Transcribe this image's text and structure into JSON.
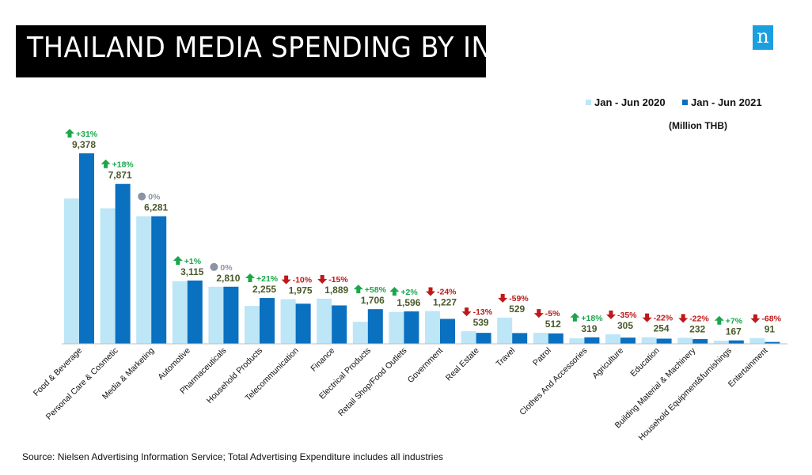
{
  "header": {
    "title": "THAILAND MEDIA SPENDING BY INDUSTRY",
    "logo_letter": "n"
  },
  "footer": {
    "source": "Source: Nielsen Advertising Information Service; Total Advertising Expenditure includes all industries"
  },
  "colors": {
    "series_2020": "#bde6f7",
    "series_2021": "#0a70c0",
    "up": "#18a84a",
    "down": "#c01818",
    "flat": "#8a94a6",
    "value_text": "#4a5a2a",
    "title_bg": "#000000",
    "logo_bg": "#1aa0e0"
  },
  "chart_data": {
    "type": "bar",
    "title": "THAILAND MEDIA SPENDING BY INDUSTRY",
    "unit": "(Million THB)",
    "legend_position": "top-right",
    "grid": false,
    "ylim": [
      0,
      9378
    ],
    "categories": [
      "Food & Beverage",
      "Personal Care & Cosmetic",
      "Media & Marketing",
      "Automotive",
      "Pharmaceuticals",
      "Household Products",
      "Telecommunication",
      "Finance",
      "Electrical Products",
      "Retail Shop/Food Outlets",
      "Government",
      "Real Estate",
      "Travel",
      "Patrol",
      "Clothes And Accessories",
      "Agriculture",
      "Education",
      "Building Material & Machinery",
      "Household Equipment&furnishings",
      "Entertainment"
    ],
    "series": [
      {
        "name": "Jan - Jun 2020",
        "values": [
          7150,
          6670,
          6280,
          3085,
          2810,
          1865,
          2195,
          2220,
          1080,
          1565,
          1615,
          620,
          1290,
          540,
          270,
          470,
          325,
          297,
          156,
          284
        ]
      },
      {
        "name": "Jan - Jun 2021",
        "values": [
          9378,
          7871,
          6281,
          3115,
          2810,
          2255,
          1975,
          1889,
          1706,
          1596,
          1227,
          539,
          529,
          512,
          319,
          305,
          254,
          232,
          167,
          91
        ]
      }
    ],
    "data_labels": [
      "9,378",
      "7,871",
      "6,281",
      "3,115",
      "2,810",
      "2,255",
      "1,975",
      "1,889",
      "1,706",
      "1,596",
      "1,227",
      "539",
      "529",
      "512",
      "319",
      "305",
      "254",
      "232",
      "167",
      "91"
    ],
    "changes": [
      {
        "label": "+31%",
        "dir": "up"
      },
      {
        "label": "+18%",
        "dir": "up"
      },
      {
        "label": "0%",
        "dir": "flat"
      },
      {
        "label": "+1%",
        "dir": "up"
      },
      {
        "label": "0%",
        "dir": "flat"
      },
      {
        "label": "+21%",
        "dir": "up"
      },
      {
        "label": "-10%",
        "dir": "down"
      },
      {
        "label": "-15%",
        "dir": "down"
      },
      {
        "label": "+58%",
        "dir": "up"
      },
      {
        "label": "+2%",
        "dir": "up"
      },
      {
        "label": "-24%",
        "dir": "down"
      },
      {
        "label": "-13%",
        "dir": "down"
      },
      {
        "label": "-59%",
        "dir": "down"
      },
      {
        "label": "-5%",
        "dir": "down"
      },
      {
        "label": "+18%",
        "dir": "up"
      },
      {
        "label": "-35%",
        "dir": "down"
      },
      {
        "label": "-22%",
        "dir": "down"
      },
      {
        "label": "-22%",
        "dir": "down"
      },
      {
        "label": "+7%",
        "dir": "up"
      },
      {
        "label": "-68%",
        "dir": "down"
      }
    ]
  }
}
